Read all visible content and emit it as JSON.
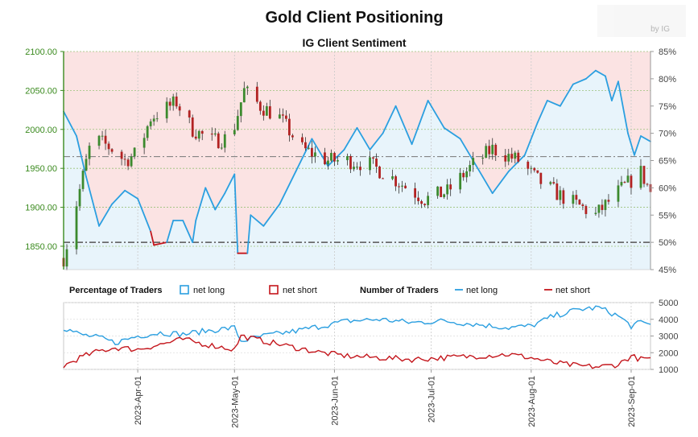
{
  "title": "Gold Client Positioning",
  "subtitle": "IG Client Sentiment",
  "logo": {
    "text": "by IG"
  },
  "colors": {
    "long": "#2b9fe0",
    "short": "#c4161c",
    "long_fill": "#e8f4fb",
    "short_fill": "#fbe3e3",
    "candle_up": "#3c8a2e",
    "candle_down": "#b22222",
    "price_axis": "#3a8a1e",
    "grid": "#9ac27a"
  },
  "legend": {
    "pct_label": "Percentage of Traders",
    "pct_long": "net long",
    "pct_short": "net short",
    "num_label": "Number of Traders",
    "num_long": "net long",
    "num_short": "net short"
  },
  "chart_data": [
    {
      "type": "candlestick",
      "title": "IG Client Sentiment",
      "y_left_ticks": [
        "1850.00",
        "1900.00",
        "1950.00",
        "2000.00",
        "2050.00",
        "2100.00"
      ],
      "y_left_range": [
        1820,
        2100
      ],
      "y_right_ticks": [
        "45%",
        "50%",
        "55%",
        "60%",
        "65%",
        "70%",
        "75%",
        "80%",
        "85%"
      ],
      "y_right_range": [
        45,
        85
      ],
      "reference_lines": {
        "price": 1965,
        "percent": 50
      },
      "x_ticks": [
        "2023-Apr-01",
        "2023-May-01",
        "2023-Jun-01",
        "2023-Jul-01",
        "2023-Aug-01",
        "2023-Sep-01"
      ],
      "anchors": [
        {
          "x": "2023-03-09",
          "long_pct": 74
        },
        {
          "x": "2023-03-13",
          "long_pct": 69.5
        },
        {
          "x": "2023-03-16",
          "long_pct": 62
        },
        {
          "x": "2023-03-20",
          "long_pct": 53
        },
        {
          "x": "2023-03-24",
          "long_pct": 57
        },
        {
          "x": "2023-03-28",
          "long_pct": 59.5
        },
        {
          "x": "2023-04-01",
          "long_pct": 58
        },
        {
          "x": "2023-04-05",
          "long_pct": 52
        },
        {
          "x": "2023-04-06",
          "long_pct": 49.5
        },
        {
          "x": "2023-04-10",
          "long_pct": 50
        },
        {
          "x": "2023-04-12",
          "long_pct": 54
        },
        {
          "x": "2023-04-15",
          "long_pct": 54
        },
        {
          "x": "2023-04-18",
          "long_pct": 50
        },
        {
          "x": "2023-04-19",
          "long_pct": 54
        },
        {
          "x": "2023-04-22",
          "long_pct": 60
        },
        {
          "x": "2023-04-25",
          "long_pct": 56
        },
        {
          "x": "2023-04-28",
          "long_pct": 59
        },
        {
          "x": "2023-05-01",
          "long_pct": 62.5
        },
        {
          "x": "2023-05-02",
          "long_pct": 48
        },
        {
          "x": "2023-05-05",
          "long_pct": 48
        },
        {
          "x": "2023-05-06",
          "long_pct": 55
        },
        {
          "x": "2023-05-10",
          "long_pct": 53
        },
        {
          "x": "2023-05-15",
          "long_pct": 57
        },
        {
          "x": "2023-05-20",
          "long_pct": 63
        },
        {
          "x": "2023-05-25",
          "long_pct": 69
        },
        {
          "x": "2023-05-30",
          "long_pct": 64
        },
        {
          "x": "2023-06-04",
          "long_pct": 67
        },
        {
          "x": "2023-06-08",
          "long_pct": 71
        },
        {
          "x": "2023-06-12",
          "long_pct": 67
        },
        {
          "x": "2023-06-16",
          "long_pct": 70
        },
        {
          "x": "2023-06-20",
          "long_pct": 75
        },
        {
          "x": "2023-06-25",
          "long_pct": 68
        },
        {
          "x": "2023-06-30",
          "long_pct": 76
        },
        {
          "x": "2023-07-05",
          "long_pct": 71
        },
        {
          "x": "2023-07-10",
          "long_pct": 69
        },
        {
          "x": "2023-07-15",
          "long_pct": 64
        },
        {
          "x": "2023-07-20",
          "long_pct": 59
        },
        {
          "x": "2023-07-25",
          "long_pct": 63
        },
        {
          "x": "2023-07-30",
          "long_pct": 66
        },
        {
          "x": "2023-08-03",
          "long_pct": 72
        },
        {
          "x": "2023-08-06",
          "long_pct": 76
        },
        {
          "x": "2023-08-10",
          "long_pct": 75
        },
        {
          "x": "2023-08-14",
          "long_pct": 79
        },
        {
          "x": "2023-08-18",
          "long_pct": 80
        },
        {
          "x": "2023-08-21",
          "long_pct": 81.5
        },
        {
          "x": "2023-08-24",
          "long_pct": 80.5
        },
        {
          "x": "2023-08-26",
          "long_pct": 76
        },
        {
          "x": "2023-08-28",
          "long_pct": 79.5
        },
        {
          "x": "2023-08-31",
          "long_pct": 70
        },
        {
          "x": "2023-09-02",
          "long_pct": 66
        },
        {
          "x": "2023-09-04",
          "long_pct": 69.5
        },
        {
          "x": "2023-09-07",
          "long_pct": 68.5
        }
      ],
      "candles": {
        "start": "2023-03-09",
        "end": "2023-09-07",
        "price_path": [
          {
            "x": "2023-03-09",
            "price": 1835
          },
          {
            "x": "2023-03-13",
            "price": 1905
          },
          {
            "x": "2023-03-17",
            "price": 1975
          },
          {
            "x": "2023-03-20",
            "price": 1985
          },
          {
            "x": "2023-03-24",
            "price": 1975
          },
          {
            "x": "2023-03-28",
            "price": 1960
          },
          {
            "x": "2023-04-01",
            "price": 1970
          },
          {
            "x": "2023-04-05",
            "price": 2015
          },
          {
            "x": "2023-04-13",
            "price": 2035
          },
          {
            "x": "2023-04-18",
            "price": 2000
          },
          {
            "x": "2023-04-24",
            "price": 1985
          },
          {
            "x": "2023-04-30",
            "price": 1990
          },
          {
            "x": "2023-05-04",
            "price": 2050
          },
          {
            "x": "2023-05-09",
            "price": 2030
          },
          {
            "x": "2023-05-15",
            "price": 2015
          },
          {
            "x": "2023-05-22",
            "price": 1975
          },
          {
            "x": "2023-05-30",
            "price": 1960
          },
          {
            "x": "2023-06-05",
            "price": 1960
          },
          {
            "x": "2023-06-12",
            "price": 1955
          },
          {
            "x": "2023-06-20",
            "price": 1935
          },
          {
            "x": "2023-06-29",
            "price": 1910
          },
          {
            "x": "2023-07-06",
            "price": 1920
          },
          {
            "x": "2023-07-14",
            "price": 1955
          },
          {
            "x": "2023-07-20",
            "price": 1975
          },
          {
            "x": "2023-07-28",
            "price": 1960
          },
          {
            "x": "2023-08-03",
            "price": 1935
          },
          {
            "x": "2023-08-10",
            "price": 1915
          },
          {
            "x": "2023-08-21",
            "price": 1890
          },
          {
            "x": "2023-08-28",
            "price": 1920
          },
          {
            "x": "2023-09-04",
            "price": 1945
          },
          {
            "x": "2023-09-07",
            "price": 1920
          }
        ]
      }
    },
    {
      "type": "line",
      "y_right_ticks": [
        "1000",
        "2000",
        "3000",
        "4000",
        "5000"
      ],
      "y_right_range": [
        1000,
        5000
      ],
      "series": [
        {
          "name": "net long",
          "points": [
            {
              "x": "2023-03-09",
              "y": 3500
            },
            {
              "x": "2023-03-14",
              "y": 3100
            },
            {
              "x": "2023-03-20",
              "y": 2900
            },
            {
              "x": "2023-03-25",
              "y": 2600
            },
            {
              "x": "2023-04-01",
              "y": 3000
            },
            {
              "x": "2023-04-08",
              "y": 3200
            },
            {
              "x": "2023-04-15",
              "y": 3100
            },
            {
              "x": "2023-04-22",
              "y": 3300
            },
            {
              "x": "2023-05-01",
              "y": 3500
            },
            {
              "x": "2023-05-03",
              "y": 2700
            },
            {
              "x": "2023-05-10",
              "y": 3000
            },
            {
              "x": "2023-05-20",
              "y": 3300
            },
            {
              "x": "2023-05-28",
              "y": 3600
            },
            {
              "x": "2023-06-05",
              "y": 3900
            },
            {
              "x": "2023-06-15",
              "y": 4000
            },
            {
              "x": "2023-06-25",
              "y": 3800
            },
            {
              "x": "2023-07-05",
              "y": 3900
            },
            {
              "x": "2023-07-15",
              "y": 3700
            },
            {
              "x": "2023-07-25",
              "y": 3500
            },
            {
              "x": "2023-08-01",
              "y": 3600
            },
            {
              "x": "2023-08-08",
              "y": 4200
            },
            {
              "x": "2023-08-16",
              "y": 4600
            },
            {
              "x": "2023-08-22",
              "y": 4700
            },
            {
              "x": "2023-08-28",
              "y": 4200
            },
            {
              "x": "2023-09-01",
              "y": 3600
            },
            {
              "x": "2023-09-04",
              "y": 3800
            },
            {
              "x": "2023-09-07",
              "y": 3700
            }
          ]
        },
        {
          "name": "net short",
          "points": [
            {
              "x": "2023-03-09",
              "y": 1200
            },
            {
              "x": "2023-03-14",
              "y": 1700
            },
            {
              "x": "2023-03-20",
              "y": 2100
            },
            {
              "x": "2023-03-25",
              "y": 2300
            },
            {
              "x": "2023-04-01",
              "y": 2200
            },
            {
              "x": "2023-04-08",
              "y": 2500
            },
            {
              "x": "2023-04-15",
              "y": 2800
            },
            {
              "x": "2023-04-22",
              "y": 2500
            },
            {
              "x": "2023-05-01",
              "y": 2200
            },
            {
              "x": "2023-05-03",
              "y": 3000
            },
            {
              "x": "2023-05-10",
              "y": 2700
            },
            {
              "x": "2023-05-20",
              "y": 2300
            },
            {
              "x": "2023-05-28",
              "y": 2000
            },
            {
              "x": "2023-06-05",
              "y": 1800
            },
            {
              "x": "2023-06-15",
              "y": 1700
            },
            {
              "x": "2023-06-25",
              "y": 1600
            },
            {
              "x": "2023-07-05",
              "y": 1700
            },
            {
              "x": "2023-07-15",
              "y": 1800
            },
            {
              "x": "2023-07-25",
              "y": 1900
            },
            {
              "x": "2023-08-01",
              "y": 1700
            },
            {
              "x": "2023-08-08",
              "y": 1400
            },
            {
              "x": "2023-08-16",
              "y": 1200
            },
            {
              "x": "2023-08-22",
              "y": 1150
            },
            {
              "x": "2023-08-28",
              "y": 1300
            },
            {
              "x": "2023-09-01",
              "y": 1800
            },
            {
              "x": "2023-09-04",
              "y": 1600
            },
            {
              "x": "2023-09-07",
              "y": 1700
            }
          ]
        }
      ]
    }
  ]
}
